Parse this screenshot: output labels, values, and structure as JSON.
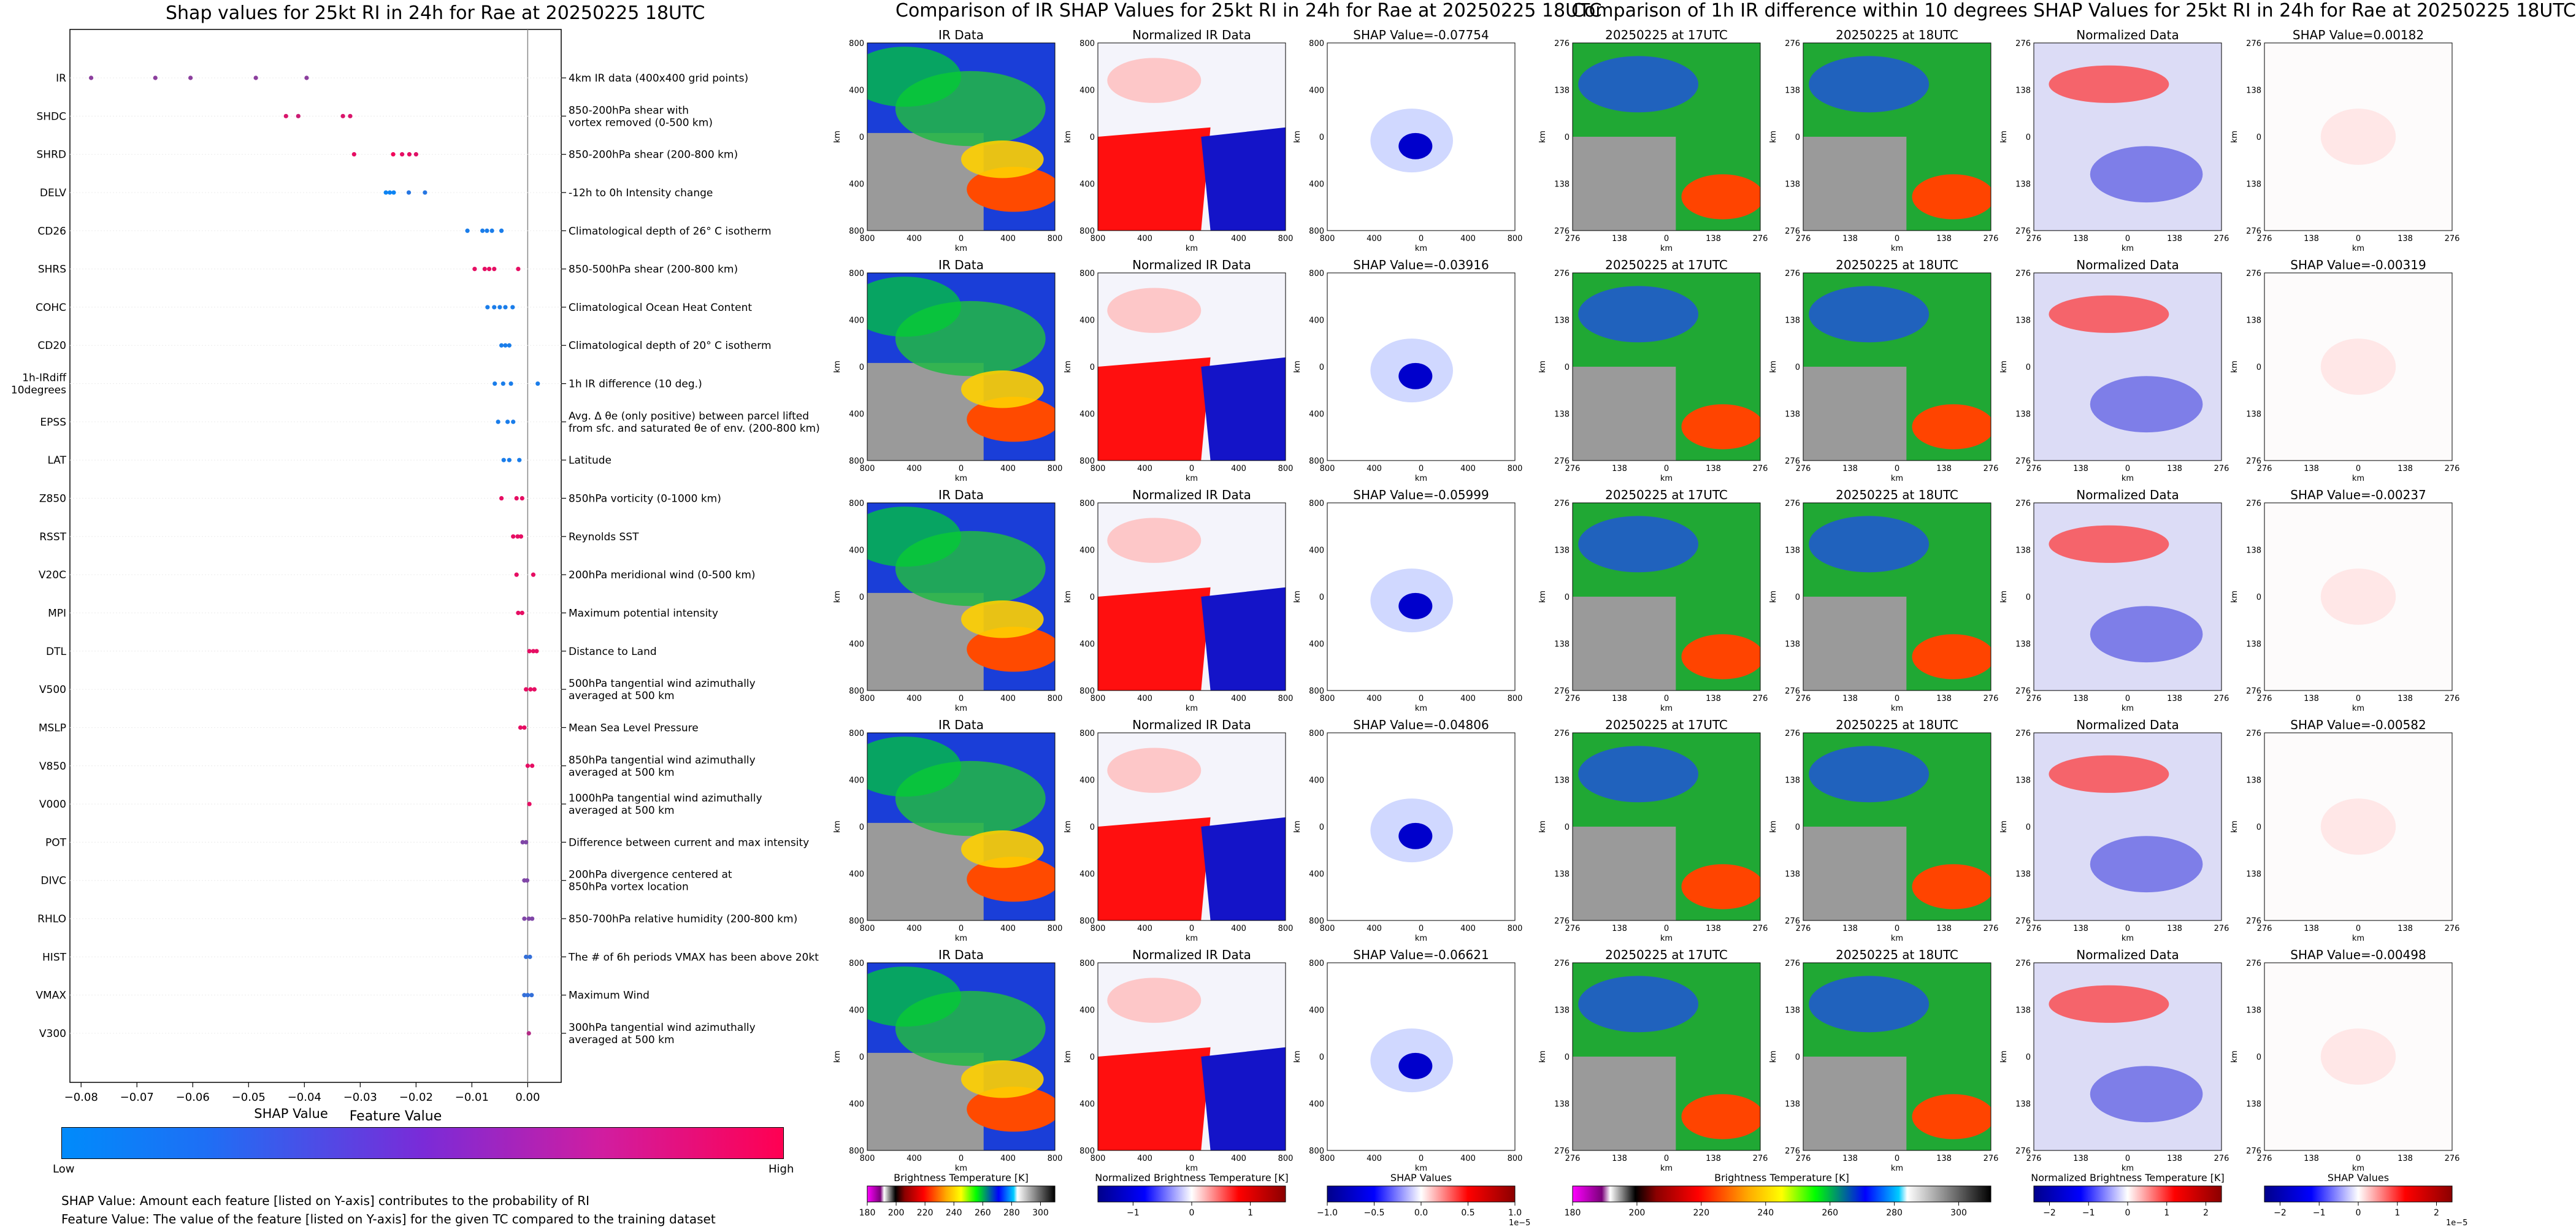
{
  "shap_panel": {
    "title": "Shap values for 25kt RI in 24h for Rae at 20250225 18UTC",
    "xlabel": "SHAP Value",
    "feature_value_label": "Feature Value",
    "low_label": "Low",
    "high_label": "High",
    "note_1": "SHAP Value: Amount each feature [listed on Y-axis] contributes to the probability of RI",
    "note_2": "Feature Value: The value of the feature [listed on Y-axis] for the given TC compared to the training dataset"
  },
  "chart_data": [
    {
      "type": "scatter",
      "title": "Shap values for 25kt RI in 24h for Rae at 20250225 18UTC",
      "xlabel": "SHAP Value",
      "ylabel": "",
      "xlim": [
        -0.082,
        0.006
      ],
      "xticks": [
        "−0.08",
        "−0.07",
        "−0.06",
        "−0.05",
        "−0.04",
        "−0.03",
        "−0.02",
        "−0.01",
        "0.00"
      ],
      "xtick_values": [
        -0.08,
        -0.07,
        -0.06,
        -0.05,
        -0.04,
        -0.03,
        -0.02,
        -0.01,
        0.0
      ],
      "colorbar": {
        "label": "Feature Value",
        "low": "Low",
        "high": "High",
        "low_color": "#008bfb",
        "high_color": "#ff0052"
      },
      "features": [
        {
          "name": "IR",
          "desc": [
            "4km IR data (400x400 grid points)"
          ],
          "points": [
            [
              -0.0782,
              0.55
            ],
            [
              -0.0667,
              0.55
            ],
            [
              -0.0604,
              0.55
            ],
            [
              -0.0487,
              0.55
            ],
            [
              -0.0396,
              0.55
            ]
          ]
        },
        {
          "name": "SHDC",
          "desc": [
            "850-200hPa shear with",
            "vortex removed (0-500 km)"
          ],
          "points": [
            [
              -0.0433,
              0.85
            ],
            [
              -0.0411,
              0.8
            ],
            [
              -0.0331,
              0.85
            ],
            [
              -0.0318,
              0.85
            ]
          ]
        },
        {
          "name": "SHRD",
          "desc": [
            "850-200hPa shear (200-800 km)"
          ],
          "points": [
            [
              -0.0311,
              0.9
            ],
            [
              -0.0241,
              0.95
            ],
            [
              -0.0225,
              0.9
            ],
            [
              -0.0212,
              0.9
            ],
            [
              -0.02,
              0.88
            ]
          ]
        },
        {
          "name": "DELV",
          "desc": [
            "-12h to 0h Intensity change"
          ],
          "points": [
            [
              -0.0254,
              0.05
            ],
            [
              -0.0247,
              0.05
            ],
            [
              -0.024,
              0.05
            ],
            [
              -0.0213,
              0.15
            ],
            [
              -0.0184,
              0.15
            ]
          ]
        },
        {
          "name": "CD26",
          "desc": [
            "Climatological depth of 26° C isotherm"
          ],
          "points": [
            [
              -0.0108,
              0.1
            ],
            [
              -0.0081,
              0.1
            ],
            [
              -0.0073,
              0.1
            ],
            [
              -0.0064,
              0.1
            ],
            [
              -0.0047,
              0.1
            ]
          ]
        },
        {
          "name": "SHRS",
          "desc": [
            "850-500hPa shear (200-800 km)"
          ],
          "points": [
            [
              -0.0095,
              0.9
            ],
            [
              -0.0077,
              0.9
            ],
            [
              -0.0069,
              0.9
            ],
            [
              -0.006,
              0.9
            ],
            [
              -0.0017,
              0.9
            ]
          ]
        },
        {
          "name": "COHC",
          "desc": [
            "Climatological Ocean Heat Content"
          ],
          "points": [
            [
              -0.0072,
              0.1
            ],
            [
              -0.006,
              0.1
            ],
            [
              -0.005,
              0.1
            ],
            [
              -0.004,
              0.1
            ],
            [
              -0.0027,
              0.1
            ]
          ]
        },
        {
          "name": "CD20",
          "desc": [
            "Climatological depth of 20° C isotherm"
          ],
          "points": [
            [
              -0.0047,
              0.1
            ],
            [
              -0.004,
              0.1
            ],
            [
              -0.0033,
              0.1
            ]
          ]
        },
        {
          "name": "1h-IRdiff\n10degrees",
          "desc": [
            "1h IR difference (10 deg.)"
          ],
          "points": [
            [
              -0.0059,
              0.1
            ],
            [
              -0.0044,
              0.1
            ],
            [
              -0.003,
              0.1
            ],
            [
              0.0018,
              0.1
            ]
          ]
        },
        {
          "name": "EPSS",
          "desc": [
            "Avg. Δ θe (only positive) between parcel lifted",
            "from sfc. and saturated θe of env. (200-800 km)"
          ],
          "points": [
            [
              -0.0053,
              0.1
            ],
            [
              -0.0036,
              0.1
            ],
            [
              -0.0026,
              0.1
            ]
          ]
        },
        {
          "name": "LAT",
          "desc": [
            "Latitude"
          ],
          "points": [
            [
              -0.0043,
              0.1
            ],
            [
              -0.0033,
              0.1
            ],
            [
              -0.0015,
              0.1
            ]
          ]
        },
        {
          "name": "Z850",
          "desc": [
            "850hPa vorticity (0-1000 km)"
          ],
          "points": [
            [
              -0.0047,
              0.9
            ],
            [
              -0.002,
              0.9
            ],
            [
              -0.001,
              0.9
            ]
          ]
        },
        {
          "name": "RSST",
          "desc": [
            "Reynolds SST"
          ],
          "points": [
            [
              -0.0026,
              0.9
            ],
            [
              -0.0018,
              0.9
            ],
            [
              -0.0012,
              0.9
            ]
          ]
        },
        {
          "name": "V20C",
          "desc": [
            "200hPa meridional wind (0-500 km)"
          ],
          "points": [
            [
              -0.002,
              0.9
            ],
            [
              0.001,
              0.9
            ]
          ]
        },
        {
          "name": "MPI",
          "desc": [
            "Maximum potential intensity"
          ],
          "points": [
            [
              -0.0017,
              0.9
            ],
            [
              -0.001,
              0.9
            ]
          ]
        },
        {
          "name": "DTL",
          "desc": [
            "Distance to Land"
          ],
          "points": [
            [
              0.0003,
              0.9
            ],
            [
              0.001,
              0.9
            ],
            [
              0.0016,
              0.9
            ]
          ]
        },
        {
          "name": "V500",
          "desc": [
            "500hPa tangential wind azimuthally",
            "averaged at 500 km"
          ],
          "points": [
            [
              -0.0003,
              0.9
            ],
            [
              0.0005,
              0.9
            ],
            [
              0.0012,
              0.9
            ]
          ]
        },
        {
          "name": "MSLP",
          "desc": [
            "Mean Sea Level Pressure"
          ],
          "points": [
            [
              -0.0013,
              0.9
            ],
            [
              -0.0006,
              0.9
            ]
          ]
        },
        {
          "name": "V850",
          "desc": [
            "850hPa tangential wind azimuthally",
            "averaged at 500 km"
          ],
          "points": [
            [
              0.0,
              0.9
            ],
            [
              0.0008,
              0.9
            ]
          ]
        },
        {
          "name": "V000",
          "desc": [
            "1000hPa tangential wind azimuthally",
            "averaged at 500 km"
          ],
          "points": [
            [
              0.0003,
              0.9
            ]
          ]
        },
        {
          "name": "POT",
          "desc": [
            "Difference between current and max intensity"
          ],
          "points": [
            [
              -0.0009,
              0.5
            ],
            [
              -0.0003,
              0.5
            ]
          ]
        },
        {
          "name": "DIVC",
          "desc": [
            "200hPa divergence centered at",
            "850hPa vortex location"
          ],
          "points": [
            [
              -0.0006,
              0.5
            ],
            [
              -0.0001,
              0.5
            ]
          ]
        },
        {
          "name": "RHLO",
          "desc": [
            "850-700hPa relative humidity (200-800 km)"
          ],
          "points": [
            [
              -0.0006,
              0.5
            ],
            [
              0.0002,
              0.5
            ],
            [
              0.0008,
              0.5
            ]
          ]
        },
        {
          "name": "HIST",
          "desc": [
            "The # of 6h periods VMAX has been above 20kt"
          ],
          "points": [
            [
              -0.0003,
              0.2
            ],
            [
              0.0004,
              0.2
            ]
          ]
        },
        {
          "name": "VMAX",
          "desc": [
            "Maximum Wind"
          ],
          "points": [
            [
              -0.0006,
              0.2
            ],
            [
              0.0,
              0.2
            ],
            [
              0.0007,
              0.2
            ]
          ]
        },
        {
          "name": "V300",
          "desc": [
            "300hPa tangential wind azimuthally",
            "averaged at 500 km"
          ],
          "points": [
            [
              0.0002,
              0.7
            ]
          ]
        }
      ]
    },
    {
      "type": "heatmap",
      "title": "Comparison of IR SHAP Values for 25kt RI in 24h for Rae at 20250225 18UTC",
      "columns": [
        "IR Data",
        "Normalized IR Data"
      ],
      "shap_titles": [
        "SHAP Value=-0.07754",
        "SHAP Value=-0.03916",
        "SHAP Value=-0.05999",
        "SHAP Value=-0.04806",
        "SHAP Value=-0.06621"
      ],
      "xlabel": "km",
      "ylabel": "km",
      "ticks": [
        "800",
        "400",
        "0",
        "400",
        "800"
      ],
      "colorbars": [
        {
          "label": "Brightness Temperature [K]",
          "ticks": [
            "180",
            "200",
            "220",
            "240",
            "260",
            "280",
            "300"
          ],
          "range": [
            180,
            310
          ]
        },
        {
          "label": "Normalized Brightness Temperature [K]",
          "ticks": [
            "−1",
            "0",
            "1"
          ],
          "range": [
            -1.6,
            1.6
          ]
        },
        {
          "label": "SHAP Values",
          "ticks": [
            "−1.0",
            "−0.5",
            "0.0",
            "0.5",
            "1.0"
          ],
          "range": [
            -1,
            1
          ],
          "offset": "1e−5"
        }
      ]
    },
    {
      "type": "heatmap",
      "title": "Comparison of 1h IR difference within 10 degrees SHAP Values for 25kt RI in 24h for Rae at 20250225 18UTC",
      "columns": [
        "20250225 at 17UTC",
        "20250225 at 18UTC",
        "Normalized Data"
      ],
      "shap_titles": [
        "SHAP Value=0.00182",
        "SHAP Value=-0.00319",
        "SHAP Value=-0.00237",
        "SHAP Value=-0.00582",
        "SHAP Value=-0.00498"
      ],
      "xlabel": "km",
      "ylabel": "km",
      "ticks": [
        "276",
        "138",
        "0",
        "138",
        "276"
      ],
      "colorbars": [
        {
          "label": "Brightness Temperature [K]",
          "ticks": [
            "180",
            "200",
            "220",
            "240",
            "260",
            "280",
            "300"
          ],
          "range": [
            180,
            310
          ]
        },
        {
          "label": "Normalized Brightness Temperature [K]",
          "ticks": [
            "−2",
            "−1",
            "0",
            "1",
            "2"
          ],
          "range": [
            -2.4,
            2.4
          ]
        },
        {
          "label": "SHAP Values",
          "ticks": [
            "−2",
            "−1",
            "0",
            "1",
            "2"
          ],
          "range": [
            -2.4,
            2.4
          ],
          "offset": "1e−5"
        }
      ]
    }
  ],
  "mid_panel": {
    "title": "Comparison of IR SHAP Values for 25kt RI in 24h for Rae at 20250225 18UTC",
    "colorbar_labels": [
      "Brightness Temperature [K]",
      "Normalized Brightness Temperature [K]",
      "SHAP Values"
    ],
    "offset_label": "1e−5"
  },
  "right_panel": {
    "title": "Comparison of 1h IR difference within 10 degrees SHAP Values for 25kt RI in 24h for Rae at 20250225 18UTC",
    "colorbar_labels": [
      "Brightness Temperature [K]",
      "Normalized Brightness Temperature [K]",
      "SHAP Values"
    ],
    "offset_label": "1e−5"
  },
  "colors": {
    "blue": "#008bfb",
    "pink": "#ff0052",
    "purple": "#8a2be2"
  }
}
